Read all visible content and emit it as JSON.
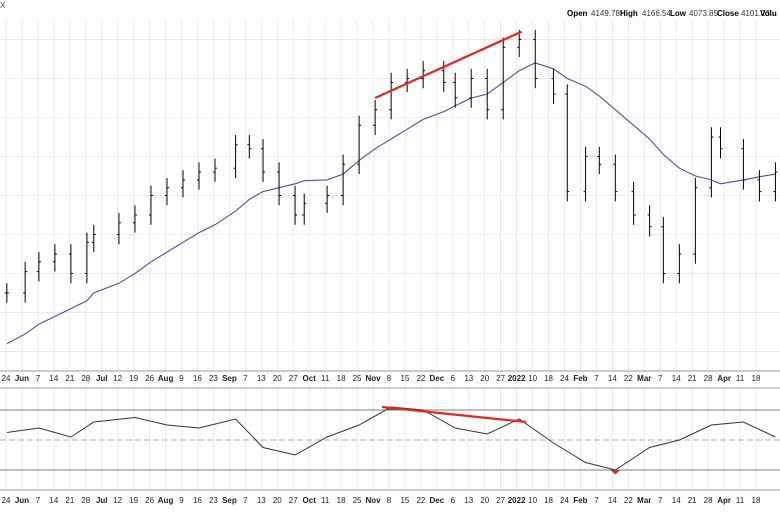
{
  "header": {
    "corner_text": "X",
    "open_label": "Open",
    "open_value": "4149.78",
    "high_label": "High",
    "high_value": "4166.54",
    "low_label": "Low",
    "low_value": "4073.85",
    "close_label": "Close",
    "close_value": "4101.23",
    "volume_label": "Volu"
  },
  "colors": {
    "background": "#ffffff",
    "grid": "#e3e3e3",
    "price_bars": "#000000",
    "moving_average": "#4a4fa8",
    "trendline": "#e8261f",
    "indicator_line": "#333333",
    "overbought_fill": "#2e6b2e",
    "oversold_fill": "#c0392b"
  },
  "chart_data": [
    {
      "type": "line",
      "name": "price-panel",
      "x": [
        "2021-05-24",
        "2021-06-01",
        "2021-06-07",
        "2021-06-14",
        "2021-06-21",
        "2021-06-28",
        "2021-07-01",
        "2021-07-12",
        "2021-07-19",
        "2021-07-26",
        "2021-08-02",
        "2021-08-09",
        "2021-08-16",
        "2021-08-23",
        "2021-09-01",
        "2021-09-07",
        "2021-09-13",
        "2021-09-20",
        "2021-09-27",
        "2021-10-01",
        "2021-10-11",
        "2021-10-18",
        "2021-10-25",
        "2021-11-01",
        "2021-11-08",
        "2021-11-15",
        "2021-11-22",
        "2021-12-01",
        "2021-12-06",
        "2021-12-13",
        "2021-12-20",
        "2021-12-27",
        "2022-01-03",
        "2022-01-10",
        "2022-01-18",
        "2022-01-24",
        "2022-02-01",
        "2022-02-07",
        "2022-02-14",
        "2022-02-22",
        "2022-03-01",
        "2022-03-07",
        "2022-03-14",
        "2022-03-21",
        "2022-03-28",
        "2022-04-01",
        "2022-04-11",
        "2022-04-18",
        "2022-04-25"
      ],
      "close": [
        4150,
        4205,
        4230,
        4250,
        4200,
        4280,
        4300,
        4330,
        4350,
        4400,
        4420,
        4440,
        4460,
        4470,
        4530,
        4520,
        4460,
        4400,
        4350,
        4380,
        4400,
        4480,
        4580,
        4620,
        4690,
        4700,
        4720,
        4690,
        4650,
        4700,
        4620,
        4780,
        4800,
        4700,
        4660,
        4410,
        4500,
        4480,
        4410,
        4350,
        4320,
        4200,
        4250,
        4420,
        4550,
        4520,
        4440,
        4410,
        4460
      ],
      "moving_average_50": [
        4020,
        4045,
        4070,
        4090,
        4110,
        4130,
        4150,
        4175,
        4200,
        4230,
        4255,
        4280,
        4305,
        4325,
        4360,
        4390,
        4410,
        4420,
        4430,
        4438,
        4440,
        4455,
        4490,
        4520,
        4545,
        4570,
        4595,
        4615,
        4630,
        4650,
        4660,
        4690,
        4720,
        4740,
        4725,
        4700,
        4680,
        4655,
        4620,
        4580,
        4545,
        4505,
        4470,
        4450,
        4440,
        4430,
        4440,
        4448,
        4455
      ],
      "xlabel": "",
      "ylabel": "",
      "grid": true,
      "trendline": {
        "from": [
          "2021-11-01",
          4650
        ],
        "to": [
          "2022-01-04",
          4820
        ]
      }
    },
    {
      "type": "line",
      "name": "indicator-panel",
      "x": [
        "2021-05-24",
        "2021-06-07",
        "2021-06-21",
        "2021-07-01",
        "2021-07-19",
        "2021-08-02",
        "2021-08-16",
        "2021-09-01",
        "2021-09-13",
        "2021-09-27",
        "2021-10-11",
        "2021-10-25",
        "2021-11-08",
        "2021-11-22",
        "2021-12-06",
        "2021-12-20",
        "2022-01-03",
        "2022-01-18",
        "2022-02-01",
        "2022-02-14",
        "2022-03-01",
        "2022-03-14",
        "2022-03-28",
        "2022-04-11",
        "2022-04-25"
      ],
      "values": [
        55,
        58,
        52,
        62,
        65,
        60,
        58,
        64,
        45,
        40,
        52,
        60,
        72,
        70,
        58,
        54,
        64,
        48,
        35,
        30,
        45,
        50,
        60,
        62,
        52
      ],
      "levels": [
        70,
        50,
        30
      ],
      "trendline": {
        "from": [
          "2021-11-04",
          72
        ],
        "to": [
          "2022-01-06",
          62
        ]
      }
    }
  ],
  "x_axis": {
    "labels": [
      {
        "text": "24",
        "bold": false
      },
      {
        "text": "Jun",
        "bold": true
      },
      {
        "text": "7",
        "bold": false
      },
      {
        "text": "14",
        "bold": false
      },
      {
        "text": "21",
        "bold": false
      },
      {
        "text": "28",
        "bold": false
      },
      {
        "text": "Jul",
        "bold": true
      },
      {
        "text": "12",
        "bold": false
      },
      {
        "text": "19",
        "bold": false
      },
      {
        "text": "26",
        "bold": false
      },
      {
        "text": "Aug",
        "bold": true
      },
      {
        "text": "9",
        "bold": false
      },
      {
        "text": "16",
        "bold": false
      },
      {
        "text": "23",
        "bold": false
      },
      {
        "text": "Sep",
        "bold": true
      },
      {
        "text": "7",
        "bold": false
      },
      {
        "text": "13",
        "bold": false
      },
      {
        "text": "20",
        "bold": false
      },
      {
        "text": "27",
        "bold": false
      },
      {
        "text": "Oct",
        "bold": true
      },
      {
        "text": "11",
        "bold": false
      },
      {
        "text": "18",
        "bold": false
      },
      {
        "text": "25",
        "bold": false
      },
      {
        "text": "Nov",
        "bold": true
      },
      {
        "text": "8",
        "bold": false
      },
      {
        "text": "15",
        "bold": false
      },
      {
        "text": "22",
        "bold": false
      },
      {
        "text": "Dec",
        "bold": true
      },
      {
        "text": "6",
        "bold": false
      },
      {
        "text": "13",
        "bold": false
      },
      {
        "text": "20",
        "bold": false
      },
      {
        "text": "27",
        "bold": false
      },
      {
        "text": "2022",
        "bold": true
      },
      {
        "text": "10",
        "bold": false
      },
      {
        "text": "18",
        "bold": false
      },
      {
        "text": "24",
        "bold": false
      },
      {
        "text": "Feb",
        "bold": true
      },
      {
        "text": "7",
        "bold": false
      },
      {
        "text": "14",
        "bold": false
      },
      {
        "text": "22",
        "bold": false
      },
      {
        "text": "Mar",
        "bold": true
      },
      {
        "text": "7",
        "bold": false
      },
      {
        "text": "14",
        "bold": false
      },
      {
        "text": "21",
        "bold": false
      },
      {
        "text": "28",
        "bold": false
      },
      {
        "text": "Apr",
        "bold": true
      },
      {
        "text": "11",
        "bold": false
      },
      {
        "text": "18",
        "bold": false
      }
    ]
  }
}
